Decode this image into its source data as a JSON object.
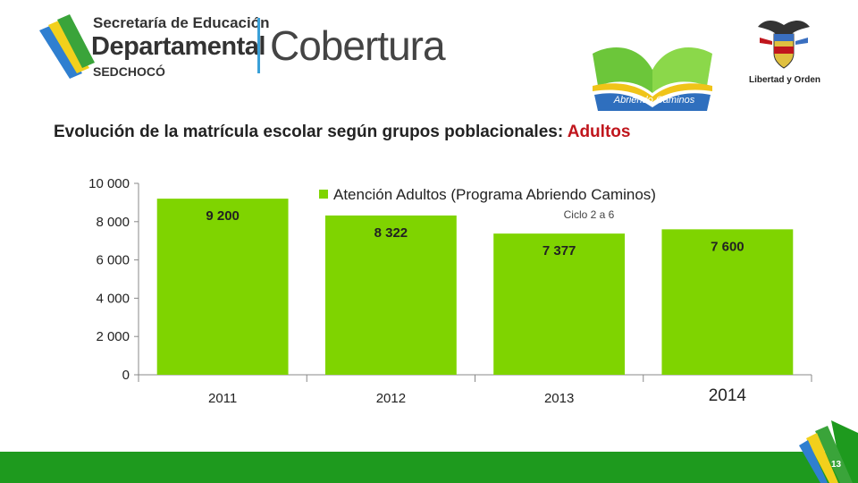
{
  "header": {
    "secretaria_line1": "Secretaría de Educación",
    "secretaria_line2": "Departamental",
    "secretaria_line3": "SEDCHOCÓ",
    "cobertura": "Cobertura",
    "book_logo_label": "Abriendo Caminos",
    "crest_label": "Libertad y Orden"
  },
  "title": {
    "main": "Evolución de la matrícula escolar según grupos poblacionales:",
    "accent": "Adultos"
  },
  "colors": {
    "bar": "#7fd400",
    "title_accent": "#c0161d",
    "footer": "#1e9a1e"
  },
  "chart_data": {
    "type": "bar",
    "categories": [
      "2011",
      "2012",
      "2013",
      "2014"
    ],
    "series": [
      {
        "name": "Atención Adultos (Programa Abriendo Caminos)",
        "values": [
          9200,
          8322,
          7377,
          7600
        ],
        "data_labels": [
          "9 200",
          "8 322",
          "7 377",
          "7 600"
        ]
      }
    ],
    "ylim": [
      0,
      10000
    ],
    "yticks": [
      0,
      2000,
      4000,
      6000,
      8000,
      10000
    ],
    "ytick_labels": [
      "0",
      "2 000",
      "4 000",
      "6 000",
      "8 000",
      "10 000"
    ],
    "annotation": "Ciclo 2 a 6",
    "legend_position": "top-right",
    "grid": false
  },
  "footer": {
    "page_number": "13"
  }
}
